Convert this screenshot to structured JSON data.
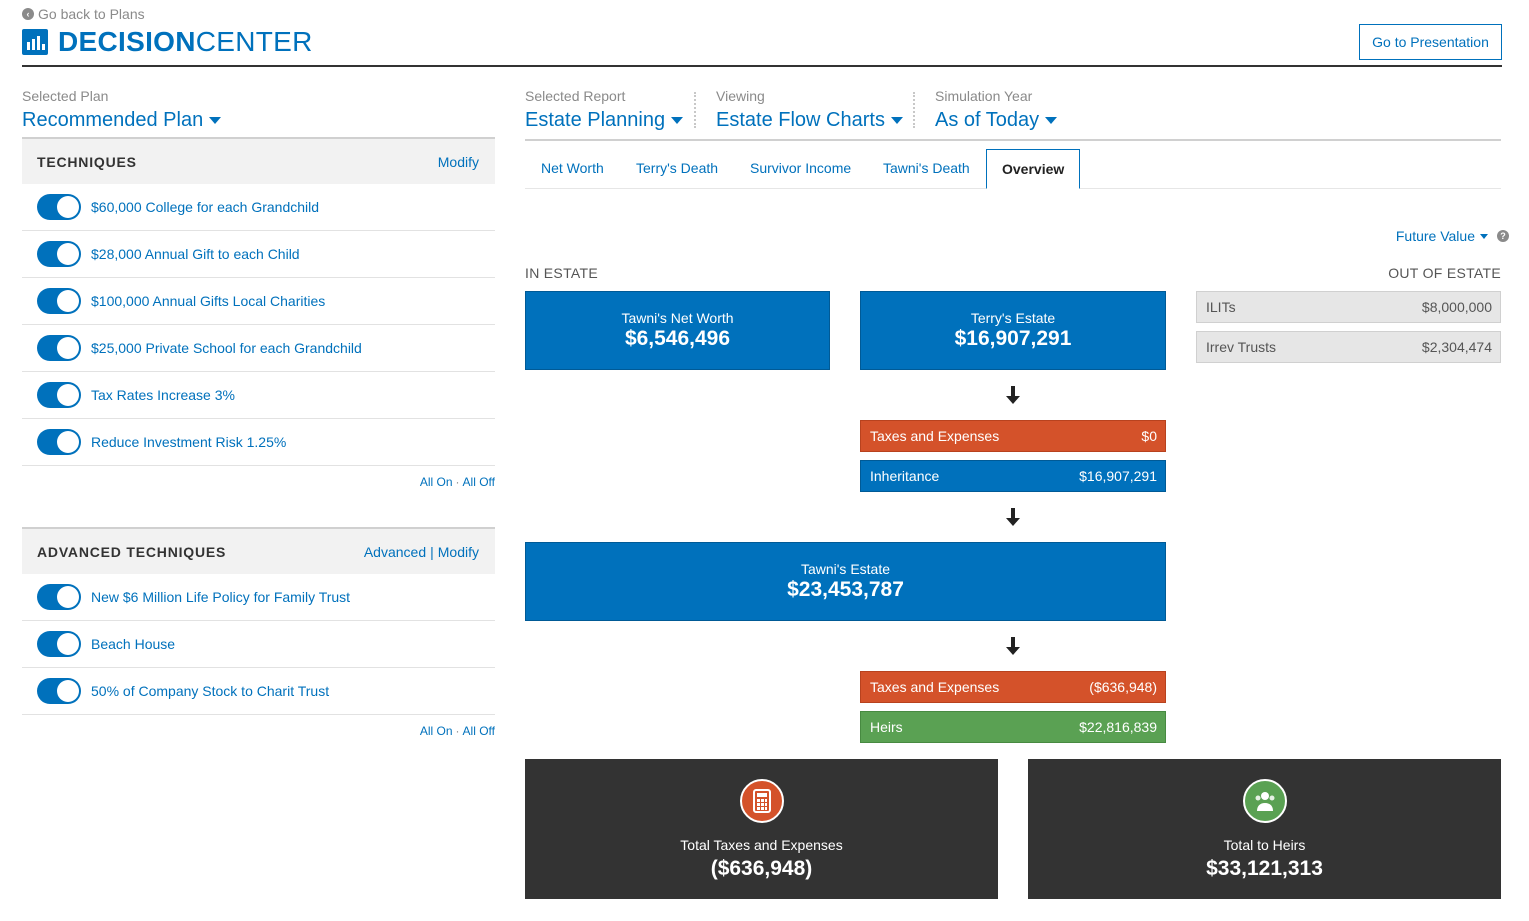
{
  "header": {
    "back_link": "Go back to Plans",
    "brand_bold": "DECISION",
    "brand_light": "CENTER",
    "presentation_button": "Go to Presentation"
  },
  "left": {
    "plan_label": "Selected Plan",
    "plan_value": "Recommended Plan",
    "techniques": {
      "title": "TECHNIQUES",
      "modify": "Modify",
      "items": [
        {
          "label": "$60,000 College for each Grandchild",
          "on": true
        },
        {
          "label": "$28,000 Annual Gift to each Child",
          "on": true
        },
        {
          "label": "$100,000 Annual Gifts Local Charities",
          "on": true
        },
        {
          "label": "$25,000 Private School for each Grandchild",
          "on": true
        },
        {
          "label": "Tax Rates Increase 3%",
          "on": true
        },
        {
          "label": "Reduce Investment Risk 1.25%",
          "on": true
        }
      ],
      "all_on": "All On",
      "all_off": "All Off"
    },
    "advanced": {
      "title": "ADVANCED TECHNIQUES",
      "advanced_link": "Advanced",
      "modify": "Modify",
      "items": [
        {
          "label": "New $6 Million Life Policy for Family Trust",
          "on": true
        },
        {
          "label": "Beach House",
          "on": true
        },
        {
          "label": "50% of Company Stock to Charit Trust",
          "on": true
        }
      ],
      "all_on": "All On",
      "all_off": "All Off"
    }
  },
  "selectors": {
    "report_label": "Selected Report",
    "report_value": "Estate Planning",
    "viewing_label": "Viewing",
    "viewing_value": "Estate Flow Charts",
    "year_label": "Simulation Year",
    "year_value": "As of Today"
  },
  "tabs": [
    "Net Worth",
    "Terry's Death",
    "Survivor Income",
    "Tawni's Death",
    "Overview"
  ],
  "active_tab": "Overview",
  "future_value": "Future Value",
  "flow": {
    "in_estate": "IN ESTATE",
    "out_estate": "OUT OF ESTATE",
    "tawni_net_worth": {
      "label": "Tawni's Net Worth",
      "value": "$6,546,496"
    },
    "terry_estate": {
      "label": "Terry's Estate",
      "value": "$16,907,291"
    },
    "terry_taxes": {
      "label": "Taxes and Expenses",
      "value": "$0"
    },
    "inheritance": {
      "label": "Inheritance",
      "value": "$16,907,291"
    },
    "tawni_estate": {
      "label": "Tawni's Estate",
      "value": "$23,453,787"
    },
    "tawni_taxes": {
      "label": "Taxes and Expenses",
      "value": "($636,948)"
    },
    "heirs": {
      "label": "Heirs",
      "value": "$22,816,839"
    },
    "out": [
      {
        "label": "ILITs",
        "value": "$8,000,000"
      },
      {
        "label": "Irrev Trusts",
        "value": "$2,304,474"
      }
    ],
    "total_taxes": {
      "label": "Total Taxes and Expenses",
      "value": "($636,948)"
    },
    "total_heirs": {
      "label": "Total to Heirs",
      "value": "$33,121,313"
    }
  },
  "colors": {
    "primary": "#0071bc",
    "tax": "#d4522a",
    "heirs": "#5aa153",
    "dark": "#333333"
  }
}
